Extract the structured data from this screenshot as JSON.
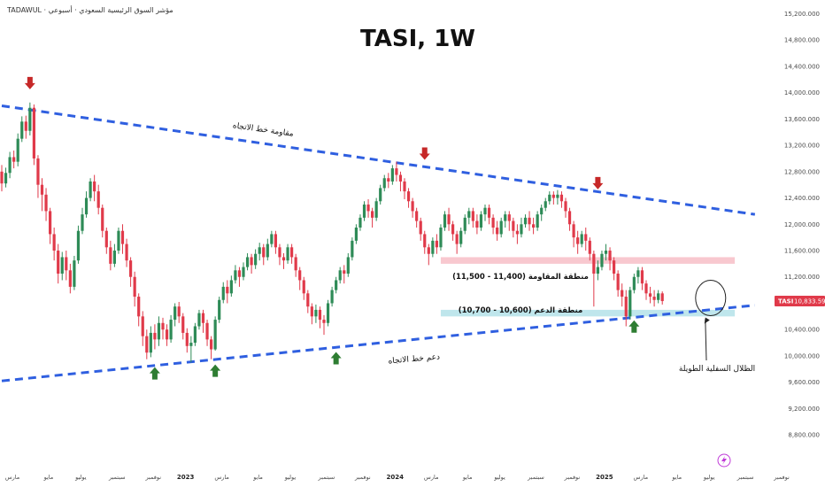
{
  "header": {
    "watermark": "TADAWUL · مؤشر السوق الرئيسية السعودي · أسبوعي"
  },
  "chart_data": {
    "type": "candlestick",
    "title": "TASI, 1W",
    "ylim": [
      8600,
      15300
    ],
    "y_ticks": [
      "15,200.000",
      "14,800.000",
      "14,400.000",
      "14,000.000",
      "13,600.000",
      "13,200.000",
      "12,800.000",
      "12,400.000",
      "12,000.000",
      "11,600.000",
      "11,200.000",
      "10,800.000",
      "10,400.000",
      "10,000.000",
      "9,600.000",
      "9,200.000",
      "8,800.000"
    ],
    "y_tick_values": [
      15200,
      14800,
      14400,
      14000,
      13600,
      13200,
      12800,
      12400,
      12000,
      11600,
      11200,
      10800,
      10400,
      10000,
      9600,
      9200,
      8800
    ],
    "x_ticks": [
      {
        "label": "مارس",
        "week": 0
      },
      {
        "label": "مايو",
        "week": 9
      },
      {
        "label": "يوليو",
        "week": 17
      },
      {
        "label": "سبتمبر",
        "week": 26
      },
      {
        "label": "نوفمبر",
        "week": 35
      },
      {
        "label": "2023",
        "week": 43,
        "year": true
      },
      {
        "label": "مارس",
        "week": 52
      },
      {
        "label": "مايو",
        "week": 61
      },
      {
        "label": "يوليو",
        "week": 69
      },
      {
        "label": "سبتمبر",
        "week": 78
      },
      {
        "label": "نوفمبر",
        "week": 87
      },
      {
        "label": "2024",
        "week": 95,
        "year": true
      },
      {
        "label": "مارس",
        "week": 104
      },
      {
        "label": "مايو",
        "week": 113
      },
      {
        "label": "يوليو",
        "week": 121
      },
      {
        "label": "سبتمبر",
        "week": 130
      },
      {
        "label": "نوفمبر",
        "week": 139
      },
      {
        "label": "2025",
        "week": 147,
        "year": true
      },
      {
        "label": "مارس",
        "week": 156
      },
      {
        "label": "مايو",
        "week": 165
      },
      {
        "label": "يوليو",
        "week": 173
      },
      {
        "label": "سبتمبر",
        "week": 182
      },
      {
        "label": "نوفمبر",
        "week": 191
      }
    ],
    "last_price": {
      "label": "TASI",
      "value": "10,833.590",
      "numeric": 10833.59
    },
    "trendlines": [
      {
        "name": "resistance",
        "label": "مقاومة خط الاتجاه",
        "x0": 0,
        "y0": 13800,
        "x1": 187,
        "y1": 12150
      },
      {
        "name": "support",
        "label": "دعم خط الاتجاه",
        "x0": 0,
        "y0": 9620,
        "x1": 187,
        "y1": 10770
      }
    ],
    "zones": [
      {
        "name": "resistance-zone",
        "label": "منطقة المقاومة (11,400 - 11,500)",
        "low": 11400,
        "high": 11500,
        "x0": 109,
        "x1": 182,
        "color": "#f5b5bf"
      },
      {
        "name": "support-zone",
        "label": "منطقة الدعم (10,600 - 10,700)",
        "low": 10600,
        "high": 10700,
        "x0": 109,
        "x1": 182,
        "color": "#a9dde6"
      }
    ],
    "annotations": [
      {
        "name": "long-lower-shadows-note",
        "label": "الظلال السفلية الطويلة"
      }
    ],
    "down_arrows": [
      {
        "week": 7,
        "value": 14050
      },
      {
        "week": 105,
        "value": 12980
      },
      {
        "week": 148,
        "value": 12530
      }
    ],
    "up_arrows": [
      {
        "week": 38,
        "value": 9830
      },
      {
        "week": 53,
        "value": 9870
      },
      {
        "week": 83,
        "value": 10060
      },
      {
        "week": 157,
        "value": 10540
      }
    ],
    "highlight_circle": {
      "week": 176,
      "value": 10880
    },
    "colors": {
      "up": "#2e8b57",
      "down": "#e03a4a",
      "trend": "#2f5fe0",
      "arrow_up": "#2e7d32",
      "arrow_down": "#c62828"
    },
    "candles": [
      [
        12800,
        12620,
        12500,
        12900
      ],
      [
        12620,
        12780,
        12560,
        12860
      ],
      [
        12780,
        13020,
        12700,
        13100
      ],
      [
        13020,
        12950,
        12850,
        13120
      ],
      [
        12950,
        13300,
        12880,
        13380
      ],
      [
        13300,
        13560,
        13250,
        13640
      ],
      [
        13560,
        13420,
        13300,
        13650
      ],
      [
        13420,
        13770,
        13350,
        13850
      ],
      [
        13770,
        13000,
        12900,
        13820
      ],
      [
        13000,
        12600,
        12400,
        13050
      ],
      [
        12600,
        12450,
        12200,
        12700
      ],
      [
        12450,
        12200,
        12050,
        12550
      ],
      [
        12200,
        11850,
        11700,
        12250
      ],
      [
        11850,
        11600,
        11450,
        11950
      ],
      [
        11600,
        11250,
        11100,
        11700
      ],
      [
        11250,
        11500,
        11150,
        11580
      ],
      [
        11500,
        11300,
        11150,
        11600
      ],
      [
        11300,
        11050,
        10950,
        11400
      ],
      [
        11050,
        11450,
        11000,
        11520
      ],
      [
        11450,
        11900,
        11400,
        11980
      ],
      [
        11900,
        12150,
        11850,
        12250
      ],
      [
        12150,
        12400,
        12100,
        12500
      ],
      [
        12400,
        12650,
        12350,
        12700
      ],
      [
        12650,
        12500,
        12350,
        12750
      ],
      [
        12500,
        12250,
        12150,
        12600
      ],
      [
        12250,
        11900,
        11800,
        12300
      ],
      [
        11900,
        11650,
        11550,
        11950
      ],
      [
        11650,
        11400,
        11300,
        11750
      ],
      [
        11400,
        11600,
        11350,
        11700
      ],
      [
        11600,
        11900,
        11550,
        11950
      ],
      [
        11900,
        11700,
        11550,
        12000
      ],
      [
        11700,
        11450,
        11350,
        11780
      ],
      [
        11450,
        11200,
        11050,
        11500
      ],
      [
        11200,
        10900,
        10750,
        11280
      ],
      [
        10900,
        10600,
        10450,
        10950
      ],
      [
        10600,
        10300,
        10150,
        10680
      ],
      [
        10300,
        10050,
        9950,
        10400
      ],
      [
        10050,
        10350,
        9980,
        10450
      ],
      [
        10350,
        10250,
        10100,
        10480
      ],
      [
        10250,
        10500,
        10150,
        10600
      ],
      [
        10500,
        10400,
        10250,
        10580
      ],
      [
        10400,
        10250,
        10150,
        10480
      ],
      [
        10250,
        10550,
        10200,
        10620
      ],
      [
        10550,
        10750,
        10450,
        10800
      ],
      [
        10750,
        10600,
        10500,
        10820
      ],
      [
        10600,
        10350,
        10250,
        10650
      ],
      [
        10350,
        10150,
        10050,
        10420
      ],
      [
        10150,
        10200,
        9900,
        10300
      ],
      [
        10200,
        10450,
        10150,
        10500
      ],
      [
        10450,
        10650,
        10400,
        10700
      ],
      [
        10650,
        10500,
        10350,
        10700
      ],
      [
        10500,
        10250,
        10150,
        10550
      ],
      [
        10250,
        10100,
        9950,
        10300
      ],
      [
        10100,
        10550,
        10080,
        10600
      ],
      [
        10550,
        10850,
        10500,
        10900
      ],
      [
        10850,
        11050,
        10800,
        11120
      ],
      [
        11050,
        10950,
        10800,
        11150
      ],
      [
        10950,
        11150,
        10900,
        11220
      ],
      [
        11150,
        11300,
        11100,
        11380
      ],
      [
        11300,
        11200,
        11050,
        11350
      ],
      [
        11200,
        11350,
        11150,
        11420
      ],
      [
        11350,
        11500,
        11300,
        11560
      ],
      [
        11500,
        11380,
        11250,
        11550
      ],
      [
        11380,
        11550,
        11320,
        11620
      ],
      [
        11550,
        11650,
        11450,
        11720
      ],
      [
        11650,
        11500,
        11380,
        11700
      ],
      [
        11500,
        11700,
        11450,
        11780
      ],
      [
        11700,
        11850,
        11650,
        11900
      ],
      [
        11850,
        11650,
        11550,
        11900
      ],
      [
        11650,
        11500,
        11380,
        11700
      ],
      [
        11500,
        11450,
        11320,
        11560
      ],
      [
        11450,
        11650,
        11400,
        11700
      ],
      [
        11650,
        11500,
        11400,
        11700
      ],
      [
        11500,
        11300,
        11200,
        11550
      ],
      [
        11300,
        11150,
        11000,
        11350
      ],
      [
        11150,
        10950,
        10850,
        11200
      ],
      [
        10950,
        10750,
        10650,
        11000
      ],
      [
        10750,
        10600,
        10480,
        10800
      ],
      [
        10600,
        10700,
        10500,
        10780
      ],
      [
        10700,
        10550,
        10420,
        10750
      ],
      [
        10550,
        10500,
        10320,
        10620
      ],
      [
        10500,
        10800,
        10450,
        10850
      ],
      [
        10800,
        11000,
        10750,
        11050
      ],
      [
        11000,
        11150,
        10950,
        11200
      ],
      [
        11150,
        11300,
        11100,
        11350
      ],
      [
        11300,
        11250,
        11100,
        11380
      ],
      [
        11250,
        11500,
        11200,
        11560
      ],
      [
        11500,
        11750,
        11450,
        11800
      ],
      [
        11750,
        11950,
        11700,
        12000
      ],
      [
        11950,
        12100,
        11900,
        12150
      ],
      [
        12100,
        12300,
        12050,
        12350
      ],
      [
        12300,
        12200,
        12100,
        12380
      ],
      [
        12200,
        12100,
        11950,
        12250
      ],
      [
        12100,
        12350,
        12050,
        12400
      ],
      [
        12350,
        12550,
        12300,
        12600
      ],
      [
        12550,
        12700,
        12500,
        12750
      ],
      [
        12700,
        12650,
        12550,
        12780
      ],
      [
        12650,
        12850,
        12600,
        12900
      ],
      [
        12850,
        12750,
        12650,
        12950
      ],
      [
        12750,
        12650,
        12500,
        12800
      ],
      [
        12650,
        12500,
        12380,
        12700
      ],
      [
        12500,
        12350,
        12250,
        12550
      ],
      [
        12350,
        12200,
        12100,
        12400
      ],
      [
        12200,
        12050,
        11950,
        12250
      ],
      [
        12050,
        11850,
        11750,
        12100
      ],
      [
        11850,
        11650,
        11550,
        11900
      ],
      [
        11650,
        11550,
        11380,
        11700
      ],
      [
        11550,
        11750,
        11500,
        11800
      ],
      [
        11750,
        11650,
        11550,
        11850
      ],
      [
        11650,
        11950,
        11600,
        12000
      ],
      [
        11950,
        12150,
        11900,
        12200
      ],
      [
        12150,
        12000,
        11900,
        12250
      ],
      [
        12000,
        11850,
        11750,
        12050
      ],
      [
        11850,
        11700,
        11550,
        11900
      ],
      [
        11700,
        11900,
        11650,
        11950
      ],
      [
        11900,
        12100,
        11850,
        12150
      ],
      [
        12100,
        12200,
        12000,
        12250
      ],
      [
        12200,
        12050,
        11950,
        12250
      ],
      [
        12050,
        11950,
        11850,
        12150
      ],
      [
        11950,
        12150,
        11900,
        12200
      ],
      [
        12150,
        12250,
        12050,
        12300
      ],
      [
        12250,
        12100,
        12000,
        12300
      ],
      [
        12100,
        11950,
        11850,
        12150
      ],
      [
        11950,
        11850,
        11750,
        12050
      ],
      [
        11850,
        12050,
        11800,
        12100
      ],
      [
        12050,
        12150,
        11950,
        12200
      ],
      [
        12150,
        12050,
        11900,
        12200
      ],
      [
        12050,
        11900,
        11800,
        12100
      ],
      [
        11900,
        11850,
        11700,
        12000
      ],
      [
        11850,
        12000,
        11800,
        12100
      ],
      [
        12000,
        12100,
        11950,
        12150
      ],
      [
        12100,
        12000,
        11900,
        12200
      ],
      [
        12000,
        11950,
        11850,
        12100
      ],
      [
        11950,
        12150,
        11900,
        12200
      ],
      [
        12150,
        12250,
        12050,
        12300
      ],
      [
        12250,
        12350,
        12200,
        12400
      ],
      [
        12350,
        12450,
        12300,
        12500
      ],
      [
        12450,
        12400,
        12300,
        12500
      ],
      [
        12400,
        12450,
        12300,
        12520
      ],
      [
        12450,
        12350,
        12250,
        12500
      ],
      [
        12350,
        12200,
        12100,
        12400
      ],
      [
        12200,
        12000,
        11900,
        12250
      ],
      [
        12000,
        11800,
        11650,
        12050
      ],
      [
        11800,
        11700,
        11550,
        11900
      ],
      [
        11700,
        11850,
        11650,
        11900
      ],
      [
        11850,
        11750,
        11600,
        11950
      ],
      [
        11750,
        11550,
        11450,
        11800
      ],
      [
        11550,
        11250,
        10750,
        11600
      ],
      [
        11250,
        11350,
        11150,
        11450
      ],
      [
        11350,
        11550,
        11300,
        11600
      ],
      [
        11550,
        11600,
        11450,
        11700
      ],
      [
        11600,
        11450,
        11300,
        11650
      ],
      [
        11450,
        11250,
        11150,
        11500
      ],
      [
        11250,
        11000,
        10900,
        11300
      ],
      [
        11000,
        10900,
        10750,
        11100
      ],
      [
        10900,
        10600,
        10450,
        11000
      ],
      [
        10600,
        11000,
        10550,
        11050
      ],
      [
        11000,
        11200,
        10950,
        11250
      ],
      [
        11200,
        11300,
        11100,
        11350
      ],
      [
        11300,
        11100,
        11000,
        11350
      ],
      [
        11100,
        10950,
        10850,
        11150
      ],
      [
        10950,
        10900,
        10800,
        11050
      ],
      [
        10900,
        10850,
        10750,
        11000
      ],
      [
        10850,
        10950,
        10800,
        11000
      ],
      [
        10950,
        10833,
        10780,
        10980
      ]
    ]
  }
}
